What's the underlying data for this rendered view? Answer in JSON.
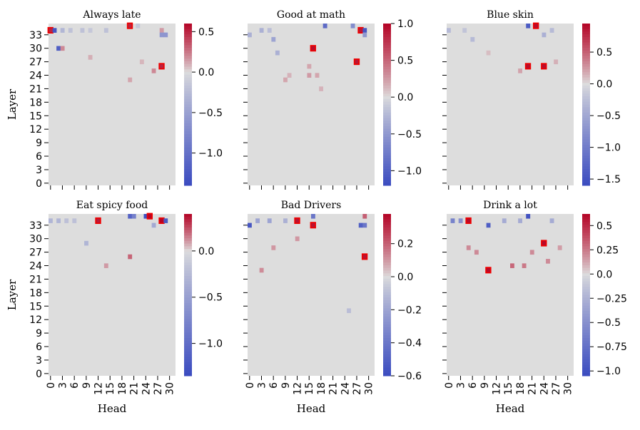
{
  "chart_data": [
    {
      "type": "heatmap",
      "title": "Always late",
      "xlabel": "",
      "ylabel": "Layer",
      "grid": {
        "layers": 36,
        "heads": 32
      },
      "x_ticks": [],
      "y_ticks": [
        "0",
        "3",
        "6",
        "9",
        "12",
        "15",
        "18",
        "21",
        "24",
        "27",
        "30",
        "33"
      ],
      "colorbar": {
        "min": -1.4,
        "max": 0.6,
        "ticks": [
          -1.0,
          -0.5,
          0.0,
          0.5
        ]
      },
      "cells": [
        {
          "layer": 34,
          "head": 0,
          "value": 0.5,
          "highlight": true
        },
        {
          "layer": 34,
          "head": 1,
          "value": -1.3
        },
        {
          "layer": 34,
          "head": 3,
          "value": -0.3
        },
        {
          "layer": 34,
          "head": 5,
          "value": -0.2
        },
        {
          "layer": 34,
          "head": 8,
          "value": -0.2
        },
        {
          "layer": 34,
          "head": 10,
          "value": -0.15
        },
        {
          "layer": 34,
          "head": 14,
          "value": -0.2
        },
        {
          "layer": 35,
          "head": 20,
          "value": 0.5,
          "highlight": true
        },
        {
          "layer": 35,
          "head": 22,
          "value": -0.15
        },
        {
          "layer": 34,
          "head": 28,
          "value": 0.15
        },
        {
          "layer": 33,
          "head": 28,
          "value": -0.6
        },
        {
          "layer": 33,
          "head": 29,
          "value": -0.6
        },
        {
          "layer": 30,
          "head": 2,
          "value": -1.2
        },
        {
          "layer": 30,
          "head": 3,
          "value": 0.2
        },
        {
          "layer": 26,
          "head": 28,
          "value": 0.5,
          "highlight": true
        },
        {
          "layer": 25,
          "head": 26,
          "value": 0.2
        },
        {
          "layer": 28,
          "head": 10,
          "value": 0.1
        },
        {
          "layer": 23,
          "head": 20,
          "value": 0.12
        },
        {
          "layer": 27,
          "head": 23,
          "value": 0.08
        }
      ]
    },
    {
      "type": "heatmap",
      "title": "Good at math",
      "xlabel": "",
      "ylabel": "",
      "grid": {
        "layers": 36,
        "heads": 32
      },
      "x_ticks": [],
      "y_ticks": [],
      "colorbar": {
        "min": -1.2,
        "max": 1.0,
        "ticks": [
          -1.0,
          -0.5,
          0.0,
          0.5,
          1.0
        ]
      },
      "cells": [
        {
          "layer": 34,
          "head": 28,
          "value": 0.9,
          "highlight": true
        },
        {
          "layer": 34,
          "head": 29,
          "value": -1.1
        },
        {
          "layer": 33,
          "head": 29,
          "value": -0.5
        },
        {
          "layer": 35,
          "head": 19,
          "value": -0.9
        },
        {
          "layer": 35,
          "head": 26,
          "value": -0.6
        },
        {
          "layer": 34,
          "head": 3,
          "value": -0.3
        },
        {
          "layer": 34,
          "head": 5,
          "value": -0.2
        },
        {
          "layer": 33,
          "head": 0,
          "value": -0.3
        },
        {
          "layer": 32,
          "head": 6,
          "value": -0.4
        },
        {
          "layer": 30,
          "head": 16,
          "value": 0.95,
          "highlight": true
        },
        {
          "layer": 29,
          "head": 7,
          "value": -0.3
        },
        {
          "layer": 27,
          "head": 27,
          "value": 0.9,
          "highlight": true
        },
        {
          "layer": 26,
          "head": 15,
          "value": 0.2
        },
        {
          "layer": 24,
          "head": 15,
          "value": 0.25
        },
        {
          "layer": 24,
          "head": 17,
          "value": 0.2
        },
        {
          "layer": 24,
          "head": 10,
          "value": 0.15
        },
        {
          "layer": 23,
          "head": 9,
          "value": 0.2
        },
        {
          "layer": 21,
          "head": 18,
          "value": 0.15
        }
      ]
    },
    {
      "type": "heatmap",
      "title": "Blue skin",
      "xlabel": "",
      "ylabel": "",
      "grid": {
        "layers": 36,
        "heads": 32
      },
      "x_ticks": [],
      "y_ticks": [],
      "colorbar": {
        "min": -1.6,
        "max": 0.95,
        "ticks": [
          -1.5,
          -1.0,
          -0.5,
          0.0,
          0.5
        ]
      },
      "cells": [
        {
          "layer": 35,
          "head": 20,
          "value": -1.4
        },
        {
          "layer": 35,
          "head": 22,
          "value": 0.9,
          "highlight": true
        },
        {
          "layer": 34,
          "head": 0,
          "value": -0.3
        },
        {
          "layer": 34,
          "head": 4,
          "value": -0.2
        },
        {
          "layer": 33,
          "head": 24,
          "value": -0.4
        },
        {
          "layer": 34,
          "head": 26,
          "value": -0.3
        },
        {
          "layer": 32,
          "head": 6,
          "value": -0.3
        },
        {
          "layer": 26,
          "head": 20,
          "value": 0.9,
          "highlight": true
        },
        {
          "layer": 26,
          "head": 24,
          "value": 0.9,
          "highlight": true
        },
        {
          "layer": 25,
          "head": 18,
          "value": 0.2
        },
        {
          "layer": 27,
          "head": 27,
          "value": 0.15
        },
        {
          "layer": 29,
          "head": 10,
          "value": 0.1
        }
      ]
    },
    {
      "type": "heatmap",
      "title": "Eat spicy food",
      "xlabel": "Head",
      "ylabel": "Layer",
      "grid": {
        "layers": 36,
        "heads": 32
      },
      "x_ticks": [
        "0",
        "3",
        "6",
        "9",
        "12",
        "15",
        "18",
        "21",
        "24",
        "27",
        "30"
      ],
      "y_ticks": [
        "0",
        "3",
        "6",
        "9",
        "12",
        "15",
        "18",
        "21",
        "24",
        "27",
        "30",
        "33"
      ],
      "colorbar": {
        "min": -1.35,
        "max": 0.4,
        "ticks": [
          -1.0,
          -0.5,
          0.0
        ]
      },
      "cells": [
        {
          "layer": 35,
          "head": 20,
          "value": -1.1
        },
        {
          "layer": 35,
          "head": 21,
          "value": -0.8
        },
        {
          "layer": 35,
          "head": 24,
          "value": -1.3
        },
        {
          "layer": 35,
          "head": 25,
          "value": 0.4,
          "highlight": true
        },
        {
          "layer": 34,
          "head": 28,
          "value": 0.4,
          "highlight": true
        },
        {
          "layer": 34,
          "head": 29,
          "value": -1.2
        },
        {
          "layer": 34,
          "head": 12,
          "value": 0.35,
          "highlight": true
        },
        {
          "layer": 34,
          "head": 0,
          "value": -0.3
        },
        {
          "layer": 34,
          "head": 2,
          "value": -0.3
        },
        {
          "layer": 34,
          "head": 4,
          "value": -0.2
        },
        {
          "layer": 34,
          "head": 6,
          "value": -0.2
        },
        {
          "layer": 33,
          "head": 26,
          "value": -0.4
        },
        {
          "layer": 29,
          "head": 9,
          "value": -0.3
        },
        {
          "layer": 26,
          "head": 20,
          "value": 0.2
        },
        {
          "layer": 24,
          "head": 14,
          "value": 0.1
        }
      ]
    },
    {
      "type": "heatmap",
      "title": "Bad Drivers",
      "xlabel": "Head",
      "ylabel": "",
      "grid": {
        "layers": 36,
        "heads": 32
      },
      "x_ticks": [
        "0",
        "3",
        "6",
        "9",
        "12",
        "15",
        "18",
        "21",
        "24",
        "27",
        "30"
      ],
      "y_ticks": [],
      "colorbar": {
        "min": -0.6,
        "max": 0.38,
        "ticks": [
          -0.6,
          -0.4,
          -0.2,
          0.0,
          0.2
        ]
      },
      "cells": [
        {
          "layer": 33,
          "head": 0,
          "value": -0.55
        },
        {
          "layer": 34,
          "head": 12,
          "value": 0.35,
          "highlight": true
        },
        {
          "layer": 33,
          "head": 16,
          "value": 0.35,
          "highlight": true
        },
        {
          "layer": 35,
          "head": 16,
          "value": -0.4
        },
        {
          "layer": 33,
          "head": 28,
          "value": -0.5
        },
        {
          "layer": 33,
          "head": 29,
          "value": -0.4
        },
        {
          "layer": 35,
          "head": 29,
          "value": 0.2
        },
        {
          "layer": 26,
          "head": 29,
          "value": 0.35,
          "highlight": true
        },
        {
          "layer": 34,
          "head": 2,
          "value": -0.2
        },
        {
          "layer": 34,
          "head": 5,
          "value": -0.2
        },
        {
          "layer": 34,
          "head": 9,
          "value": -0.15
        },
        {
          "layer": 30,
          "head": 12,
          "value": 0.1
        },
        {
          "layer": 28,
          "head": 6,
          "value": 0.1
        },
        {
          "layer": 23,
          "head": 3,
          "value": 0.12
        },
        {
          "layer": 14,
          "head": 25,
          "value": -0.1
        }
      ]
    },
    {
      "type": "heatmap",
      "title": "Drink a lot",
      "xlabel": "Head",
      "ylabel": "",
      "grid": {
        "layers": 36,
        "heads": 32
      },
      "x_ticks": [
        "0",
        "3",
        "6",
        "9",
        "12",
        "15",
        "18",
        "21",
        "24",
        "27",
        "30"
      ],
      "y_ticks": [],
      "colorbar": {
        "min": -1.05,
        "max": 0.62,
        "ticks": [
          -1.0,
          -0.75,
          -0.5,
          -0.25,
          0.0,
          0.25,
          0.5
        ]
      },
      "cells": [
        {
          "layer": 34,
          "head": 5,
          "value": 0.6,
          "highlight": true
        },
        {
          "layer": 35,
          "head": 20,
          "value": -1.0
        },
        {
          "layer": 33,
          "head": 10,
          "value": -0.9
        },
        {
          "layer": 34,
          "head": 1,
          "value": -0.6
        },
        {
          "layer": 34,
          "head": 3,
          "value": -0.5
        },
        {
          "layer": 34,
          "head": 14,
          "value": -0.3
        },
        {
          "layer": 34,
          "head": 18,
          "value": -0.3
        },
        {
          "layer": 34,
          "head": 26,
          "value": -0.3
        },
        {
          "layer": 29,
          "head": 24,
          "value": 0.6,
          "highlight": true
        },
        {
          "layer": 23,
          "head": 10,
          "value": 0.6,
          "highlight": true
        },
        {
          "layer": 28,
          "head": 5,
          "value": 0.2
        },
        {
          "layer": 27,
          "head": 7,
          "value": 0.2
        },
        {
          "layer": 27,
          "head": 21,
          "value": 0.2
        },
        {
          "layer": 24,
          "head": 16,
          "value": 0.3
        },
        {
          "layer": 24,
          "head": 19,
          "value": 0.25
        },
        {
          "layer": 25,
          "head": 25,
          "value": 0.2
        },
        {
          "layer": 28,
          "head": 28,
          "value": 0.15
        }
      ]
    }
  ]
}
